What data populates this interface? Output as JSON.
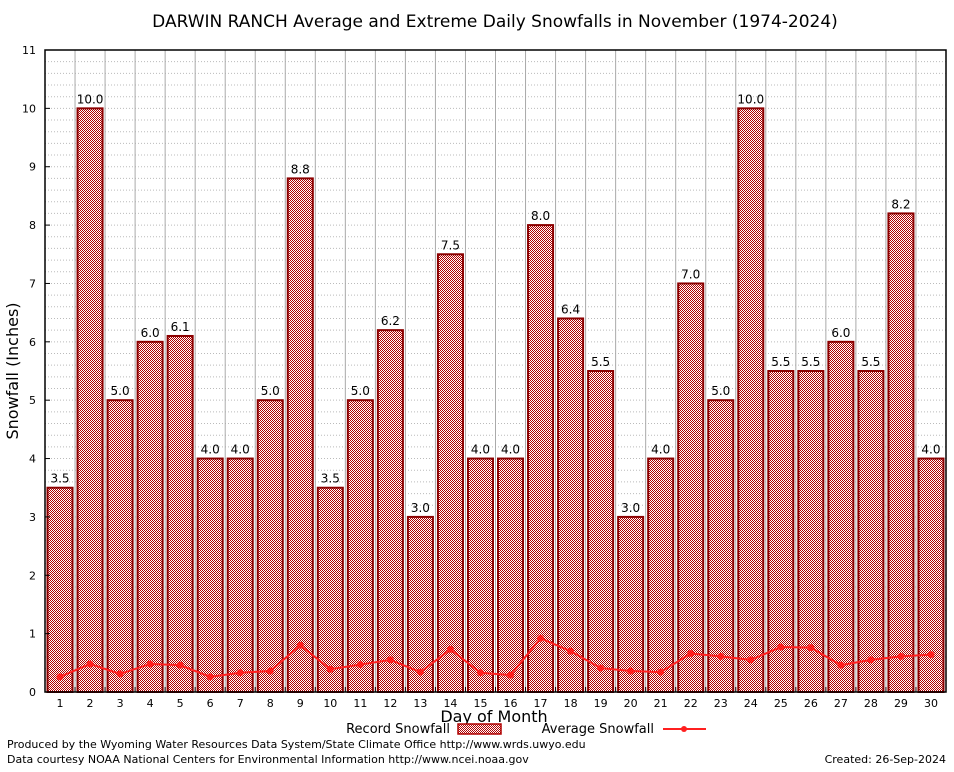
{
  "chart_data": {
    "type": "bar",
    "title": "DARWIN RANCH Average and Extreme Daily Snowfalls in November (1974-2024)",
    "xlabel": "Day of Month",
    "ylabel": "Snowfall (Inches)",
    "ylim": [
      0,
      11
    ],
    "yticks": [
      "0",
      "1",
      "2",
      "3",
      "4",
      "5",
      "6",
      "7",
      "8",
      "9",
      "10",
      "11"
    ],
    "categories": [
      "1",
      "2",
      "3",
      "4",
      "5",
      "6",
      "7",
      "8",
      "9",
      "10",
      "11",
      "12",
      "13",
      "14",
      "15",
      "16",
      "17",
      "18",
      "19",
      "20",
      "21",
      "22",
      "23",
      "24",
      "25",
      "26",
      "27",
      "28",
      "29",
      "30"
    ],
    "grid": true,
    "legend_position": "bottom-center",
    "series": [
      {
        "name": "Record Snowfall",
        "type": "bar",
        "color": "#cc0000",
        "values": [
          3.5,
          10.0,
          5.0,
          6.0,
          6.1,
          4.0,
          4.0,
          5.0,
          8.8,
          3.5,
          5.0,
          6.2,
          3.0,
          7.5,
          4.0,
          4.0,
          8.0,
          6.4,
          5.5,
          3.0,
          4.0,
          7.0,
          5.0,
          10.0,
          5.5,
          5.5,
          6.0,
          5.5,
          8.2,
          4.0
        ],
        "labels": [
          "3.5",
          "10.0",
          "5.0",
          "6.0",
          "6.1",
          "4.0",
          "4.0",
          "5.0",
          "8.8",
          "3.5",
          "5.0",
          "6.2",
          "3.0",
          "7.5",
          "4.0",
          "4.0",
          "8.0",
          "6.4",
          "5.5",
          "3.0",
          "4.0",
          "7.0",
          "5.0",
          "10.0",
          "5.5",
          "5.5",
          "6.0",
          "5.5",
          "8.2",
          "4.0"
        ]
      },
      {
        "name": "Average Snowfall",
        "type": "line",
        "color": "#ff2020",
        "values": [
          0.26,
          0.48,
          0.31,
          0.48,
          0.46,
          0.26,
          0.33,
          0.36,
          0.8,
          0.39,
          0.47,
          0.55,
          0.34,
          0.73,
          0.33,
          0.29,
          0.92,
          0.7,
          0.41,
          0.36,
          0.34,
          0.66,
          0.61,
          0.55,
          0.77,
          0.76,
          0.46,
          0.55,
          0.61,
          0.64
        ]
      }
    ]
  },
  "footer": {
    "produced_by": "Produced by the Wyoming Water Resources Data System/State Climate Office http://www.wrds.uwyo.edu",
    "courtesy": "Data courtesy NOAA National Centers for Environmental Information http://www.ncei.noaa.gov",
    "created": "Created: 26-Sep-2024"
  }
}
